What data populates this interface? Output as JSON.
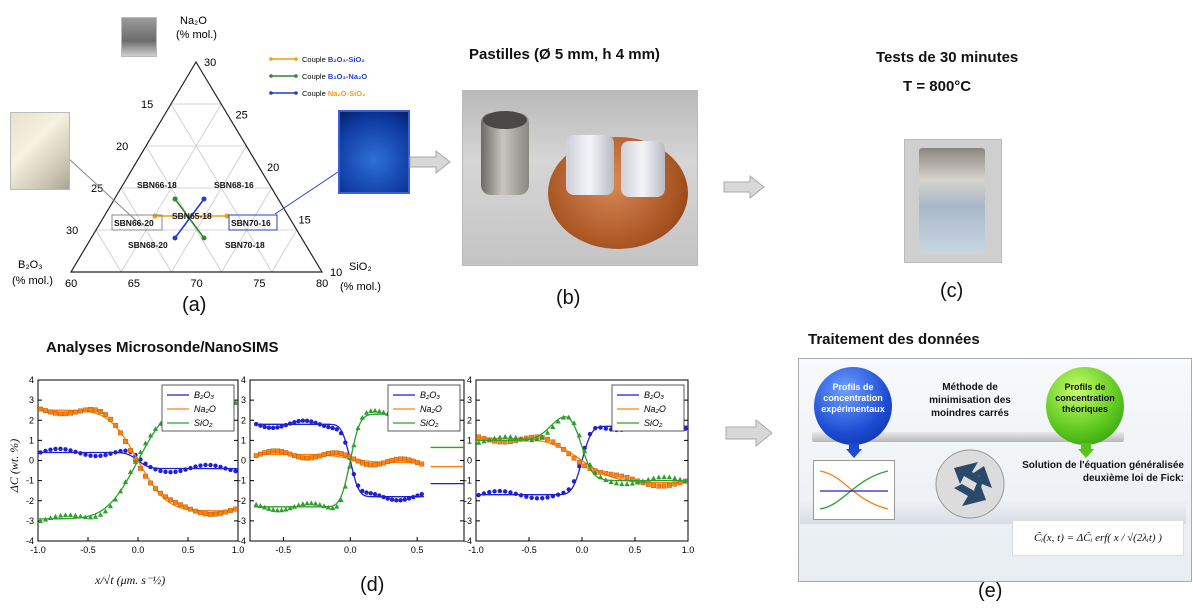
{
  "panels": {
    "a": {
      "label": "(a)",
      "apex_top": "Na₂O",
      "apex_top_unit": "(% mol.)",
      "apex_left": "B₂O₃",
      "apex_left_unit": "(% mol.)",
      "apex_right": "SiO₂",
      "apex_right_unit": "(% mol.)",
      "bottom_ticks": [
        "60",
        "65",
        "70",
        "75",
        "80"
      ],
      "left_ticks": [
        "30",
        "25",
        "20",
        "15"
      ],
      "right_ticks": [
        "30",
        "25",
        "20",
        "15",
        "10"
      ],
      "samples": [
        "SBN66-18",
        "SBN68-16",
        "SBN66-20",
        "SBN65-18",
        "SBN70-16",
        "SBN68-20",
        "SBN70-18"
      ],
      "legend": [
        {
          "prefix": "Couple ",
          "name": "B₂O₃-SiO₂",
          "color": "#f39c12"
        },
        {
          "prefix": "Couple ",
          "name": "B₂O₃-Na₂O",
          "color": "#2e8b2e"
        },
        {
          "prefix": "Couple ",
          "name": "Na₂O-SiO₂",
          "color": "#1f3fd1"
        }
      ]
    },
    "b": {
      "label": "(b)",
      "title": "Pastilles (Ø 5 mm,  h 4 mm)"
    },
    "c": {
      "label": "(c)",
      "title_line1": "Tests de 30 minutes",
      "title_line2": "T = 800°C"
    },
    "d": {
      "label": "(d)",
      "title": "Analyses Microsonde/NanoSIMS",
      "ylabel": "ΔC (wt. %)",
      "xlabel": "x/√t (μm. s⁻½)",
      "legend": [
        "B₂O₃",
        "Na₂O",
        "SiO₂"
      ]
    },
    "e": {
      "label": "(e)",
      "title": "Traitement des données",
      "left_ball": "Profils de concentration expérimentaux",
      "right_ball": "Profils de concentration théoriques",
      "method": "Méthode de minimisation des moindres carrés",
      "solution": "Solution de l'équation généralisée deuxième loi de Fick:",
      "formula": "C̃ᵢ(x, t) = ΔC̃ᵢ erf( x / √(2λᵢt) )"
    }
  },
  "chart_data": [
    {
      "type": "scatter",
      "title": "",
      "xlabel": "x/√t (μm. s⁻½)",
      "ylabel": "ΔC (wt. %)",
      "xlim": [
        -1.0,
        1.0
      ],
      "ylim": [
        -4,
        4
      ],
      "xticks": [
        "-1.0",
        "-0.5",
        "0.0",
        "0.5",
        "1.0"
      ],
      "yticks": [
        "4",
        "3",
        "2",
        "1",
        "0",
        "-1",
        "-2",
        "-3",
        "-4"
      ],
      "legend_position": "top-right",
      "series": [
        {
          "name": "B₂O₃",
          "color": "#1f1fd6",
          "marker": "circle",
          "amp": -0.4,
          "w": 0.12,
          "base": 0
        },
        {
          "name": "Na₂O",
          "color": "#ff7f0e",
          "marker": "square",
          "amp": -2.5,
          "w": 0.32,
          "base": 0
        },
        {
          "name": "SiO₂",
          "color": "#2ca02c",
          "marker": "triangle",
          "amp": 2.9,
          "w": 0.35,
          "base": 0
        }
      ]
    },
    {
      "type": "scatter",
      "title": "",
      "xlabel": "",
      "ylabel": "",
      "xlim": [
        -0.75,
        0.85
      ],
      "ylim": [
        -4,
        4
      ],
      "xticks": [
        "-0.5",
        "0.0",
        "0.5"
      ],
      "yticks": [
        "4",
        "3",
        "2",
        "1",
        "0",
        "-1",
        "-2",
        "-3",
        "-4"
      ],
      "legend_position": "top-right",
      "series": [
        {
          "name": "B₂O₃",
          "color": "#1f1fd6",
          "marker": "circle",
          "amp": -1.8,
          "w": 0.07,
          "base": 0,
          "outer": 2.3
        },
        {
          "name": "Na₂O",
          "color": "#ff7f0e",
          "marker": "square",
          "amp": -0.2,
          "w": 0.2,
          "base": 0.1,
          "outer": 0.6
        },
        {
          "name": "SiO₂",
          "color": "#2ca02c",
          "marker": "triangle",
          "amp": 2.3,
          "w": 0.08,
          "base": 0,
          "outer": -1.3
        }
      ]
    },
    {
      "type": "scatter",
      "title": "",
      "xlabel": "",
      "ylabel": "",
      "xlim": [
        -1.0,
        1.0
      ],
      "ylim": [
        -4,
        4
      ],
      "xticks": [
        "-1.0",
        "-0.5",
        "0.0",
        "0.5",
        "1.0"
      ],
      "yticks": [
        "4",
        "3",
        "2",
        "1",
        "0",
        "-1",
        "-2",
        "-3",
        "-4"
      ],
      "legend_position": "top-right",
      "series": [
        {
          "name": "B₂O₃",
          "color": "#1f1fd6",
          "marker": "circle",
          "amp": 1.7,
          "w": 0.1,
          "base": 0
        },
        {
          "name": "Na₂O",
          "color": "#ff7f0e",
          "marker": "square",
          "amp": -1.1,
          "w": 0.35,
          "base": 0
        },
        {
          "name": "SiO₂",
          "color": "#2ca02c",
          "marker": "triangle",
          "amp": -1.0,
          "w": 0.1,
          "base": 0,
          "bump": 1.2
        }
      ]
    }
  ]
}
